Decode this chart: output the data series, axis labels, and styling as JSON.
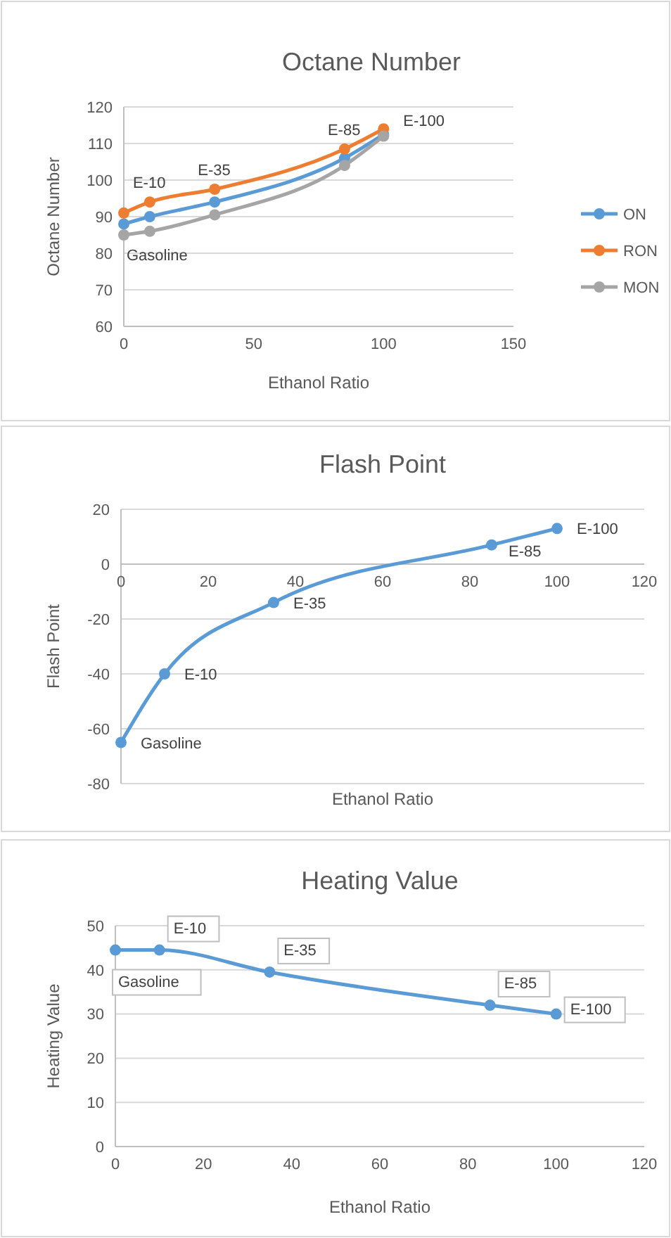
{
  "chart_data": [
    {
      "type": "line",
      "title": "Octane Number",
      "xlabel": "Ethanol Ratio",
      "ylabel": "Octane Number",
      "x": [
        0,
        10,
        35,
        85,
        100
      ],
      "xlim": [
        0,
        150
      ],
      "xticks": [
        0,
        50,
        100,
        150
      ],
      "ylim": [
        60,
        120
      ],
      "yticks": [
        60,
        70,
        80,
        90,
        100,
        110,
        120
      ],
      "grid": "y",
      "legend": "right",
      "marker": "circle",
      "series": [
        {
          "name": "ON",
          "color": "#5b9bd5",
          "values": [
            88,
            90,
            94,
            106,
            112.5
          ]
        },
        {
          "name": "RON",
          "color": "#ed7d31",
          "values": [
            91,
            94,
            97.5,
            108.5,
            114
          ]
        },
        {
          "name": "MON",
          "color": "#a5a5a5",
          "values": [
            85,
            86,
            90.5,
            104,
            112
          ]
        }
      ],
      "annotations": [
        {
          "text": "Gasoline",
          "x": 0,
          "y": 85
        },
        {
          "text": "E-10",
          "x": 10,
          "y": 94
        },
        {
          "text": "E-35",
          "x": 35,
          "y": 97.5
        },
        {
          "text": "E-85",
          "x": 85,
          "y": 108.5
        },
        {
          "text": "E-100",
          "x": 100,
          "y": 114
        }
      ]
    },
    {
      "type": "line",
      "title": "Flash Point",
      "xlabel": "Ethanol Ratio",
      "ylabel": "Flash Point",
      "x": [
        0,
        10,
        35,
        85,
        100
      ],
      "xlim": [
        0,
        120
      ],
      "xticks": [
        0,
        20,
        40,
        60,
        80,
        100,
        120
      ],
      "ylim": [
        -80,
        20
      ],
      "yticks": [
        -80,
        -60,
        -40,
        -20,
        0,
        20
      ],
      "grid": "y",
      "marker": "circle",
      "series": [
        {
          "color": "#5b9bd5",
          "values": [
            -65,
            -40,
            -14,
            7,
            13
          ]
        }
      ],
      "annotations": [
        {
          "text": "Gasoline",
          "x": 0,
          "y": -65
        },
        {
          "text": "E-10",
          "x": 10,
          "y": -40
        },
        {
          "text": "E-35",
          "x": 35,
          "y": -14
        },
        {
          "text": "E-85",
          "x": 85,
          "y": 7
        },
        {
          "text": "E-100",
          "x": 100,
          "y": 13
        }
      ]
    },
    {
      "type": "line",
      "title": "Heating Value",
      "xlabel": "Ethanol Ratio",
      "ylabel": "Heating Value",
      "x": [
        0,
        10,
        35,
        85,
        100
      ],
      "xlim": [
        0,
        120
      ],
      "xticks": [
        0,
        20,
        40,
        60,
        80,
        100,
        120
      ],
      "ylim": [
        0,
        50
      ],
      "yticks": [
        0,
        10,
        20,
        30,
        40,
        50
      ],
      "grid": "y",
      "marker": "circle",
      "series": [
        {
          "color": "#5b9bd5",
          "values": [
            44.5,
            44.5,
            39.5,
            32,
            30
          ]
        }
      ],
      "annotations": [
        {
          "text": "Gasoline",
          "x": 0,
          "y": 44.5
        },
        {
          "text": "E-10",
          "x": 10,
          "y": 44.5
        },
        {
          "text": "E-35",
          "x": 35,
          "y": 39.5
        },
        {
          "text": "E-85",
          "x": 85,
          "y": 32
        },
        {
          "text": "E-100",
          "x": 100,
          "y": 30
        }
      ]
    }
  ]
}
